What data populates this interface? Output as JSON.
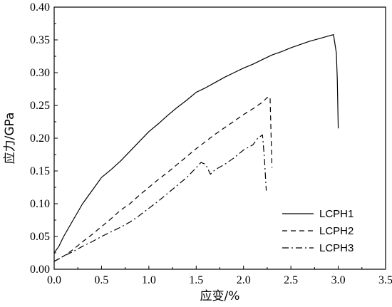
{
  "chart_data": {
    "type": "line",
    "xlabel": "应变/%",
    "ylabel": "应力/GPa",
    "xlim": [
      0,
      3.5
    ],
    "ylim": [
      0,
      0.4
    ],
    "x_ticks": [
      "0.0",
      "0.5",
      "1.0",
      "1.5",
      "2.0",
      "2.5",
      "3.0",
      "3.5"
    ],
    "y_ticks": [
      "0.00",
      "0.05",
      "0.10",
      "0.15",
      "0.20",
      "0.25",
      "0.30",
      "0.35",
      "0.40"
    ],
    "grid": false,
    "legend_position": "bottom-right",
    "series": [
      {
        "name": "LCPH1",
        "dash": "solid",
        "x": [
          0.0,
          0.05,
          0.1,
          0.2,
          0.3,
          0.4,
          0.5,
          0.6,
          0.7,
          0.8,
          0.9,
          1.0,
          1.1,
          1.2,
          1.3,
          1.4,
          1.5,
          1.6,
          1.7,
          1.8,
          1.9,
          2.0,
          2.1,
          2.2,
          2.3,
          2.4,
          2.5,
          2.6,
          2.7,
          2.8,
          2.9,
          2.95,
          2.98,
          2.99,
          3.0
        ],
        "y": [
          0.025,
          0.035,
          0.05,
          0.075,
          0.1,
          0.12,
          0.14,
          0.152,
          0.165,
          0.18,
          0.195,
          0.21,
          0.222,
          0.235,
          0.247,
          0.258,
          0.27,
          0.277,
          0.285,
          0.293,
          0.3,
          0.307,
          0.313,
          0.32,
          0.327,
          0.332,
          0.338,
          0.343,
          0.348,
          0.352,
          0.356,
          0.358,
          0.33,
          0.29,
          0.215
        ]
      },
      {
        "name": "LCPH2",
        "dash": "dashed",
        "x": [
          0.0,
          0.1,
          0.2,
          0.3,
          0.4,
          0.5,
          0.6,
          0.7,
          0.8,
          0.9,
          1.0,
          1.1,
          1.2,
          1.3,
          1.4,
          1.5,
          1.6,
          1.7,
          1.8,
          1.9,
          2.0,
          2.1,
          2.2,
          2.25,
          2.28,
          2.3
        ],
        "y": [
          0.012,
          0.02,
          0.03,
          0.042,
          0.053,
          0.065,
          0.077,
          0.09,
          0.1,
          0.113,
          0.125,
          0.137,
          0.148,
          0.16,
          0.172,
          0.184,
          0.195,
          0.206,
          0.216,
          0.226,
          0.236,
          0.245,
          0.255,
          0.262,
          0.263,
          0.155
        ]
      },
      {
        "name": "LCPH3",
        "dash": "dashdot",
        "x": [
          0.0,
          0.1,
          0.2,
          0.3,
          0.4,
          0.5,
          0.6,
          0.7,
          0.8,
          0.9,
          1.0,
          1.1,
          1.2,
          1.3,
          1.4,
          1.5,
          1.55,
          1.6,
          1.65,
          1.7,
          1.8,
          1.9,
          2.0,
          2.1,
          2.15,
          2.2,
          2.22,
          2.24
        ],
        "y": [
          0.012,
          0.02,
          0.027,
          0.035,
          0.042,
          0.05,
          0.057,
          0.064,
          0.072,
          0.082,
          0.093,
          0.104,
          0.116,
          0.128,
          0.14,
          0.155,
          0.163,
          0.16,
          0.145,
          0.152,
          0.16,
          0.17,
          0.182,
          0.19,
          0.2,
          0.205,
          0.17,
          0.12
        ]
      }
    ]
  }
}
